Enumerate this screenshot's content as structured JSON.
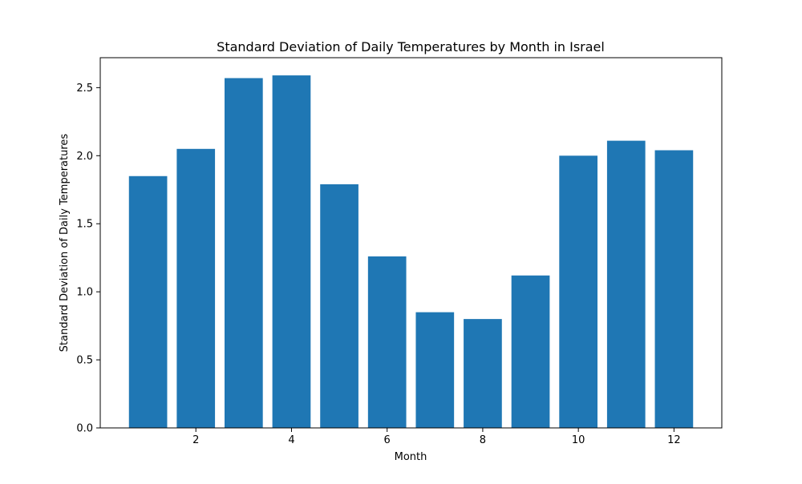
{
  "chart_data": {
    "type": "bar",
    "title": "Standard Deviation of Daily Temperatures by Month in Israel",
    "xlabel": "Month",
    "ylabel": "Standard Deviation of Daily Temperatures",
    "categories": [
      1,
      2,
      3,
      4,
      5,
      6,
      7,
      8,
      9,
      10,
      11,
      12
    ],
    "values": [
      1.85,
      2.05,
      2.57,
      2.59,
      1.79,
      1.26,
      0.85,
      0.8,
      1.12,
      2.0,
      2.11,
      2.04
    ],
    "xlim": [
      0.0,
      13.0
    ],
    "ylim": [
      0,
      2.72
    ],
    "xticks": [
      2,
      4,
      6,
      8,
      10,
      12
    ],
    "yticks": [
      0.0,
      0.5,
      1.0,
      1.5,
      2.0,
      2.5
    ],
    "ytick_labels": [
      "0.0",
      "0.5",
      "1.0",
      "1.5",
      "2.0",
      "2.5"
    ],
    "bar_width": 0.8,
    "grid": false,
    "legend": "none",
    "bar_color": "#1f77b4"
  }
}
